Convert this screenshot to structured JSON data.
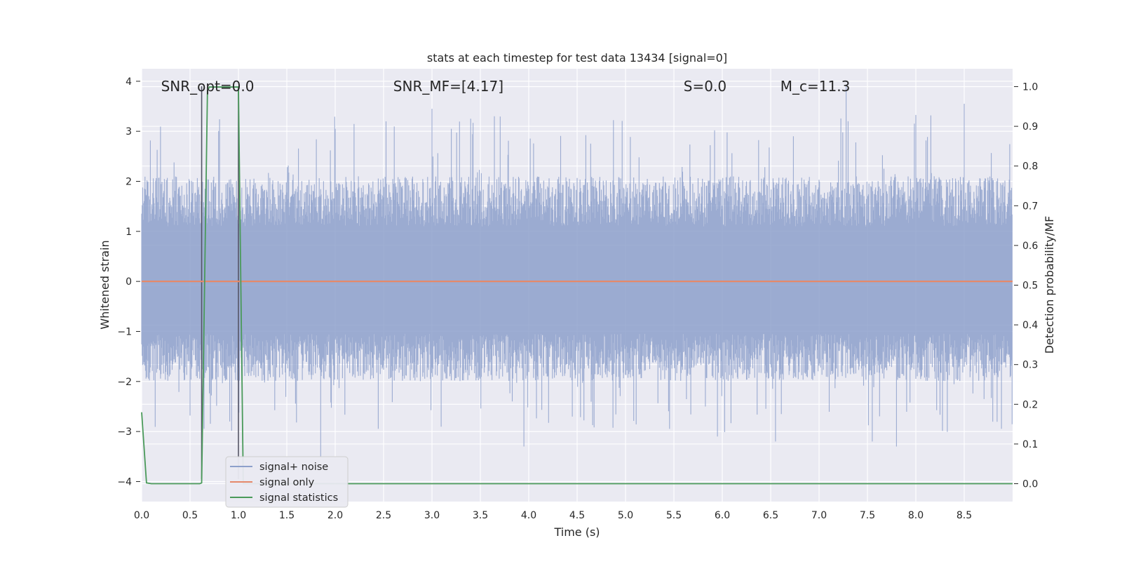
{
  "chart_data": {
    "type": "line",
    "title": "stats at each timestep for test data 13434 [signal=0]",
    "xlabel": "Time (s)",
    "ylabel": "Whitened strain",
    "y2label": "Detection probability/MF",
    "xlim": [
      0.0,
      9.0
    ],
    "ylim": [
      -4.4,
      4.25
    ],
    "y2lim": [
      -0.045,
      1.045
    ],
    "xticks": [
      "0.0",
      "0.5",
      "1.0",
      "1.5",
      "2.0",
      "2.5",
      "3.0",
      "3.5",
      "4.0",
      "4.5",
      "5.0",
      "5.5",
      "6.0",
      "6.5",
      "7.0",
      "7.5",
      "8.0",
      "8.5"
    ],
    "yticks": [
      "4",
      "3",
      "2",
      "1",
      "0",
      "−1",
      "−2",
      "−3",
      "−4"
    ],
    "y2ticks": [
      "1.0",
      "0.9",
      "0.8",
      "0.7",
      "0.6",
      "0.5",
      "0.4",
      "0.3",
      "0.2",
      "0.1",
      "0.0"
    ],
    "grid": true,
    "legend_position": "lower-left",
    "annotations": [
      {
        "text": "SNR_opt=0.0",
        "x": 0.2,
        "y": 3.9
      },
      {
        "text": "SNR_MF=[4.17]",
        "x": 2.6,
        "y": 3.9
      },
      {
        "text": "S=0.0",
        "x": 5.6,
        "y": 3.9
      },
      {
        "text": "M_c=11.3",
        "x": 6.6,
        "y": 3.9
      }
    ],
    "vlines": [
      0.62,
      1.0
    ],
    "series": [
      {
        "name": "signal+ noise",
        "color": "#8da0cb",
        "kind": "noise-band",
        "envelope": {
          "typical_max": 2.0,
          "typical_min": -1.9,
          "peak_max": 3.9,
          "peak_min": -3.5
        },
        "peaks": [
          {
            "x": 0.62,
            "y": 3.85
          },
          {
            "x": 2.0,
            "y": 3.05
          },
          {
            "x": 3.0,
            "y": 3.45
          },
          {
            "x": 3.2,
            "y": 3.05
          },
          {
            "x": 3.4,
            "y": 3.25
          },
          {
            "x": 7.28,
            "y": 3.9
          },
          {
            "x": 7.3,
            "y": 3.2
          },
          {
            "x": 8.5,
            "y": 3.55
          },
          {
            "x": 1.85,
            "y": -3.5
          },
          {
            "x": 3.95,
            "y": -3.3
          },
          {
            "x": 7.8,
            "y": -3.3
          },
          {
            "x": 6.55,
            "y": -3.2
          },
          {
            "x": 5.95,
            "y": -3.1
          },
          {
            "x": 7.55,
            "y": -3.2
          }
        ]
      },
      {
        "name": "signal only",
        "color": "#e5896a",
        "x": [
          0.0,
          9.0
        ],
        "y": [
          0.0,
          0.0
        ]
      },
      {
        "name": "signal statistics",
        "color": "#4a9a5a",
        "axis": "right",
        "x": [
          0.0,
          0.05,
          0.1,
          0.6,
          0.62,
          0.68,
          0.7,
          1.0,
          1.05,
          1.1,
          9.0
        ],
        "y": [
          0.18,
          0.002,
          0.0,
          0.0,
          0.002,
          0.99,
          0.999,
          0.999,
          0.0,
          0.0,
          0.0
        ]
      }
    ]
  }
}
